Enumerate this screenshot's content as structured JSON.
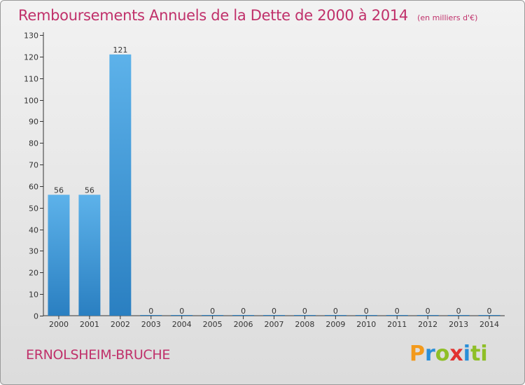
{
  "chart_data": {
    "type": "bar",
    "title": "Remboursements Annuels de la Dette de 2000 à 2014",
    "unit_note": "(en milliers d'€)",
    "categories": [
      "2000",
      "2001",
      "2002",
      "2003",
      "2004",
      "2005",
      "2006",
      "2007",
      "2008",
      "2009",
      "2010",
      "2011",
      "2012",
      "2013",
      "2014"
    ],
    "values": [
      56,
      56,
      121,
      0,
      0,
      0,
      0,
      0,
      0,
      0,
      0,
      0,
      0,
      0,
      0
    ],
    "data_labels": [
      "56",
      "56",
      "121",
      "0",
      "0",
      "0",
      "0",
      "0",
      "0",
      "0",
      "0",
      "0",
      "0",
      "0",
      "0"
    ],
    "ylim": [
      0,
      130
    ],
    "yticks": [
      0,
      10,
      20,
      30,
      40,
      50,
      60,
      70,
      80,
      90,
      100,
      110,
      120,
      130
    ],
    "xlabel": "",
    "ylabel": "",
    "grid": false,
    "colors": {
      "bar_light": "#5db2ea",
      "bar_dark": "#2a7fc1",
      "accent": "#c0306a"
    }
  },
  "commune_name": "ERNOLSHEIM-BRUCHE",
  "logo": {
    "letters": [
      "P",
      "r",
      "o",
      "x",
      "i",
      "ti"
    ]
  }
}
